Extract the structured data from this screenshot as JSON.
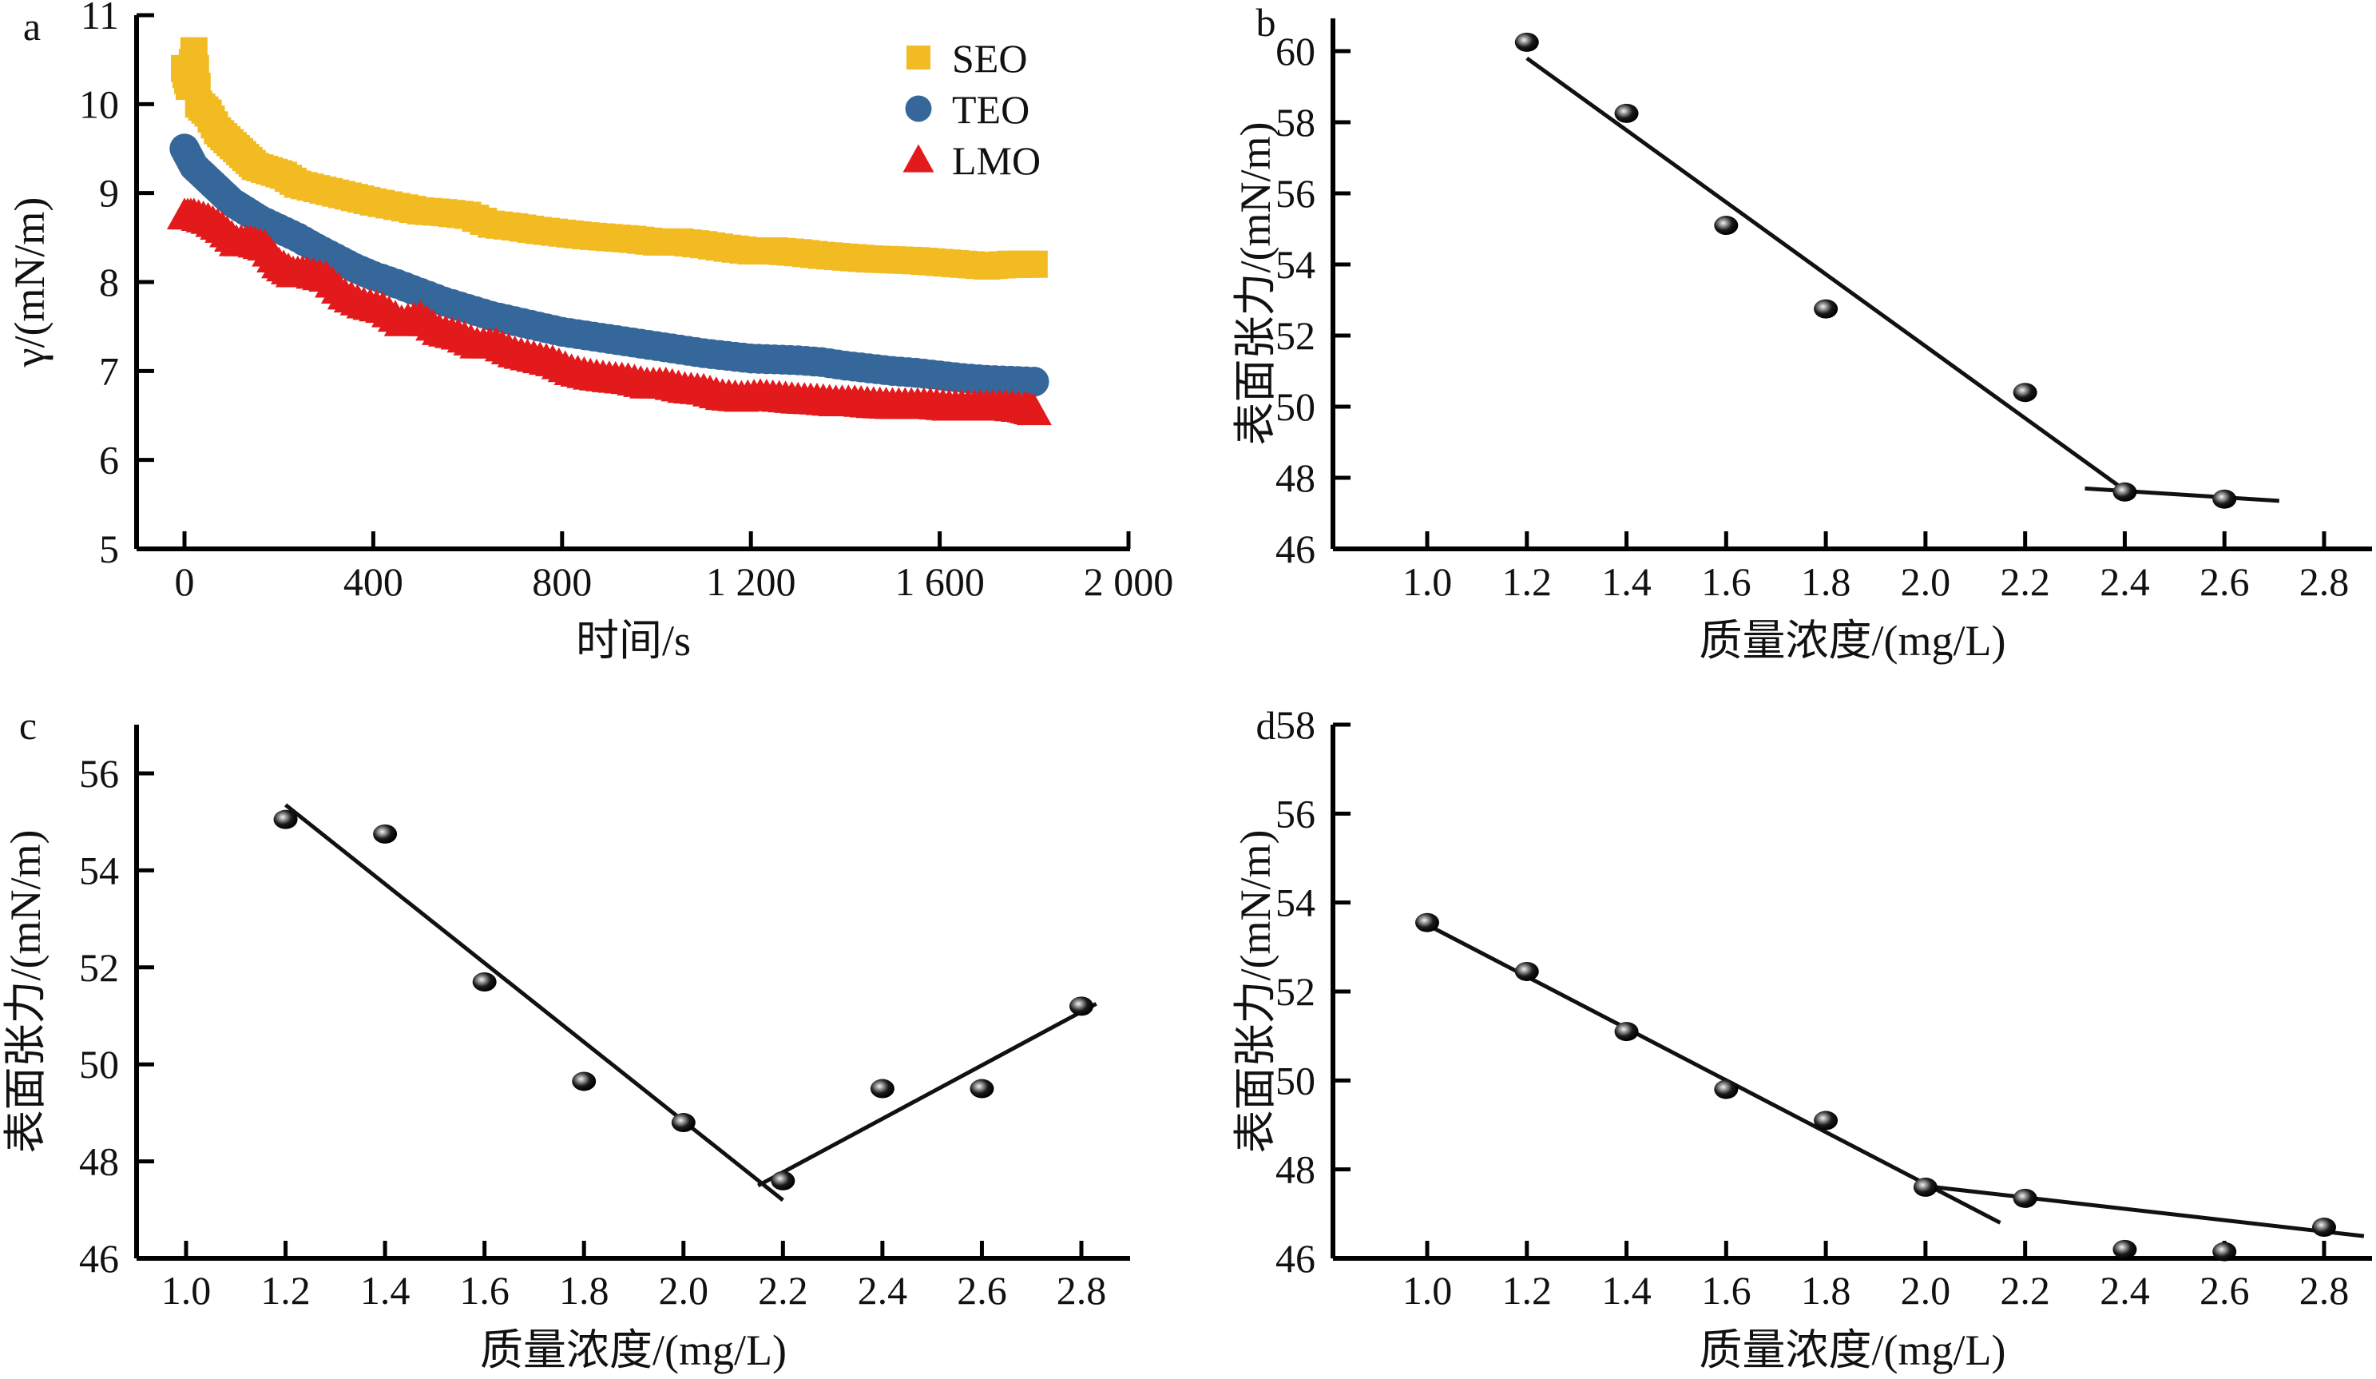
{
  "figure": {
    "panels": [
      "a",
      "b",
      "c",
      "d"
    ]
  },
  "chart_data": [
    {
      "panel": "a",
      "type": "scatter",
      "title": "",
      "xlabel": "时间/s",
      "ylabel": "γ/(mN/m)",
      "xlim": [
        -100,
        2000
      ],
      "ylim": [
        5,
        11
      ],
      "xticks": [
        0,
        400,
        800,
        1200,
        1600,
        2000
      ],
      "xtick_labels": [
        "0",
        "400",
        "800",
        "1 200",
        "1 600",
        "2 000"
      ],
      "yticks": [
        5,
        6,
        7,
        8,
        9,
        10,
        11
      ],
      "ytick_labels": [
        "5",
        "6",
        "7",
        "8",
        "9",
        "10",
        "11"
      ],
      "legend_position": "top-right",
      "grid": false,
      "series": [
        {
          "name": "SEO",
          "marker": "square",
          "color": "#f2bb22",
          "x": [
            0,
            10,
            20,
            30,
            50,
            70,
            90,
            110,
            130,
            150,
            180,
            210,
            240,
            280,
            320,
            360,
            400,
            450,
            500,
            550,
            600,
            650,
            700,
            750,
            800,
            850,
            900,
            950,
            1000,
            1050,
            1100,
            1150,
            1200,
            1250,
            1300,
            1350,
            1400,
            1450,
            1500,
            1550,
            1600,
            1650,
            1700,
            1750,
            1800
          ],
          "y": [
            10.4,
            10.2,
            10.6,
            10.0,
            9.9,
            9.7,
            9.6,
            9.5,
            9.4,
            9.3,
            9.25,
            9.2,
            9.1,
            9.05,
            9.0,
            8.95,
            8.9,
            8.85,
            8.8,
            8.78,
            8.75,
            8.65,
            8.62,
            8.58,
            8.55,
            8.52,
            8.5,
            8.48,
            8.45,
            8.45,
            8.42,
            8.38,
            8.35,
            8.35,
            8.33,
            8.3,
            8.28,
            8.26,
            8.25,
            8.24,
            8.22,
            8.2,
            8.18,
            8.2,
            8.2
          ]
        },
        {
          "name": "TEO",
          "marker": "circle",
          "color": "#35679a",
          "x": [
            0,
            10,
            20,
            40,
            60,
            80,
            100,
            130,
            160,
            200,
            240,
            280,
            320,
            360,
            400,
            450,
            500,
            550,
            600,
            650,
            700,
            750,
            800,
            850,
            900,
            950,
            1000,
            1050,
            1100,
            1150,
            1200,
            1250,
            1300,
            1350,
            1400,
            1450,
            1500,
            1550,
            1600,
            1650,
            1700,
            1750,
            1800
          ],
          "y": [
            9.5,
            9.4,
            9.3,
            9.2,
            9.1,
            9.0,
            8.9,
            8.8,
            8.7,
            8.6,
            8.5,
            8.38,
            8.27,
            8.16,
            8.07,
            7.98,
            7.88,
            7.78,
            7.7,
            7.62,
            7.56,
            7.5,
            7.44,
            7.4,
            7.36,
            7.32,
            7.28,
            7.24,
            7.2,
            7.17,
            7.14,
            7.13,
            7.12,
            7.1,
            7.06,
            7.03,
            7.0,
            6.98,
            6.95,
            6.92,
            6.9,
            6.89,
            6.88
          ]
        },
        {
          "name": "LMO",
          "marker": "triangle",
          "color": "#e31a1c",
          "x": [
            0,
            20,
            50,
            80,
            110,
            140,
            170,
            200,
            230,
            260,
            300,
            340,
            380,
            420,
            460,
            500,
            540,
            580,
            620,
            660,
            700,
            740,
            780,
            820,
            860,
            900,
            940,
            980,
            1020,
            1060,
            1100,
            1140,
            1180,
            1220,
            1260,
            1300,
            1340,
            1380,
            1420,
            1460,
            1500,
            1540,
            1580,
            1620,
            1660,
            1700,
            1740,
            1780,
            1800
          ],
          "y": [
            8.75,
            8.75,
            8.7,
            8.6,
            8.45,
            8.45,
            8.4,
            8.2,
            8.1,
            8.1,
            8.05,
            7.85,
            7.75,
            7.7,
            7.55,
            7.6,
            7.45,
            7.4,
            7.3,
            7.3,
            7.2,
            7.15,
            7.1,
            7.0,
            6.95,
            6.92,
            6.9,
            6.85,
            6.85,
            6.8,
            6.78,
            6.72,
            6.7,
            6.72,
            6.7,
            6.68,
            6.67,
            6.65,
            6.65,
            6.63,
            6.62,
            6.62,
            6.62,
            6.6,
            6.6,
            6.6,
            6.6,
            6.58,
            6.55
          ]
        }
      ]
    },
    {
      "panel": "b",
      "type": "scatter",
      "title": "",
      "xlabel": "质量浓度/(mg/L)",
      "ylabel": "表面张力/(mN/m)",
      "xlim": [
        0.9,
        2.9
      ],
      "ylim": [
        46,
        61
      ],
      "xticks": [
        1.0,
        1.2,
        1.4,
        1.6,
        1.8,
        2.0,
        2.2,
        2.4,
        2.6,
        2.8
      ],
      "xtick_labels": [
        "1.0",
        "1.2",
        "1.4",
        "1.6",
        "1.8",
        "2.0",
        "2.2",
        "2.4",
        "2.6",
        "2.8"
      ],
      "yticks": [
        46,
        48,
        50,
        52,
        54,
        56,
        58,
        60
      ],
      "ytick_labels": [
        "46",
        "48",
        "50",
        "52",
        "54",
        "56",
        "58",
        "60"
      ],
      "grid": false,
      "points": {
        "x": [
          1.2,
          1.4,
          1.6,
          1.8,
          2.2,
          2.4,
          2.6
        ],
        "y": [
          60.25,
          58.25,
          55.1,
          52.75,
          50.4,
          47.6,
          47.4
        ]
      },
      "fit_lines": [
        {
          "x": [
            1.2,
            2.4
          ],
          "y": [
            59.8,
            47.65
          ]
        },
        {
          "x": [
            2.32,
            2.71
          ],
          "y": [
            47.7,
            47.35
          ]
        }
      ]
    },
    {
      "panel": "c",
      "type": "scatter",
      "title": "",
      "xlabel": "质量浓度/(mg/L)",
      "ylabel": "表面张力/(mN/m)",
      "xlim": [
        0.9,
        2.9
      ],
      "ylim": [
        46,
        57
      ],
      "xticks": [
        1.0,
        1.2,
        1.4,
        1.6,
        1.8,
        2.0,
        2.2,
        2.4,
        2.6,
        2.8
      ],
      "xtick_labels": [
        "1.0",
        "1.2",
        "1.4",
        "1.6",
        "1.8",
        "2.0",
        "2.2",
        "2.4",
        "2.6",
        "2.8"
      ],
      "yticks": [
        46,
        48,
        50,
        52,
        54,
        56
      ],
      "ytick_labels": [
        "46",
        "48",
        "50",
        "52",
        "54",
        "56"
      ],
      "grid": false,
      "points": {
        "x": [
          1.2,
          1.4,
          1.6,
          1.8,
          2.0,
          2.2,
          2.4,
          2.6,
          2.8
        ],
        "y": [
          55.05,
          54.75,
          51.7,
          49.65,
          48.8,
          47.6,
          49.5,
          49.5,
          51.2
        ]
      },
      "fit_lines": [
        {
          "x": [
            1.2,
            2.2
          ],
          "y": [
            55.35,
            47.2
          ]
        },
        {
          "x": [
            2.15,
            2.83
          ],
          "y": [
            47.5,
            51.25
          ]
        }
      ]
    },
    {
      "panel": "d",
      "type": "scatter",
      "title": "",
      "xlabel": "质量浓度/(mg/L)",
      "ylabel": "表面张力/(mN/m)",
      "xlim": [
        0.9,
        2.9
      ],
      "ylim": [
        46,
        58
      ],
      "xticks": [
        1.0,
        1.2,
        1.4,
        1.6,
        1.8,
        2.0,
        2.2,
        2.4,
        2.6,
        2.8
      ],
      "xtick_labels": [
        "1.0",
        "1.2",
        "1.4",
        "1.6",
        "1.8",
        "2.0",
        "2.2",
        "2.4",
        "2.6",
        "2.8"
      ],
      "yticks": [
        46,
        48,
        50,
        52,
        54,
        56,
        58
      ],
      "ytick_labels": [
        "46",
        "48",
        "50",
        "52",
        "54",
        "56",
        "58"
      ],
      "grid": false,
      "points": {
        "x": [
          1.0,
          1.2,
          1.4,
          1.6,
          1.8,
          2.0,
          2.2,
          2.4,
          2.6,
          2.8
        ],
        "y": [
          53.55,
          52.45,
          51.1,
          49.8,
          49.1,
          47.6,
          47.35,
          46.2,
          46.15,
          46.7
        ]
      },
      "fit_lines": [
        {
          "x": [
            1.0,
            2.15
          ],
          "y": [
            53.5,
            46.8
          ]
        },
        {
          "x": [
            1.98,
            2.88
          ],
          "y": [
            47.65,
            46.5
          ]
        }
      ]
    }
  ]
}
